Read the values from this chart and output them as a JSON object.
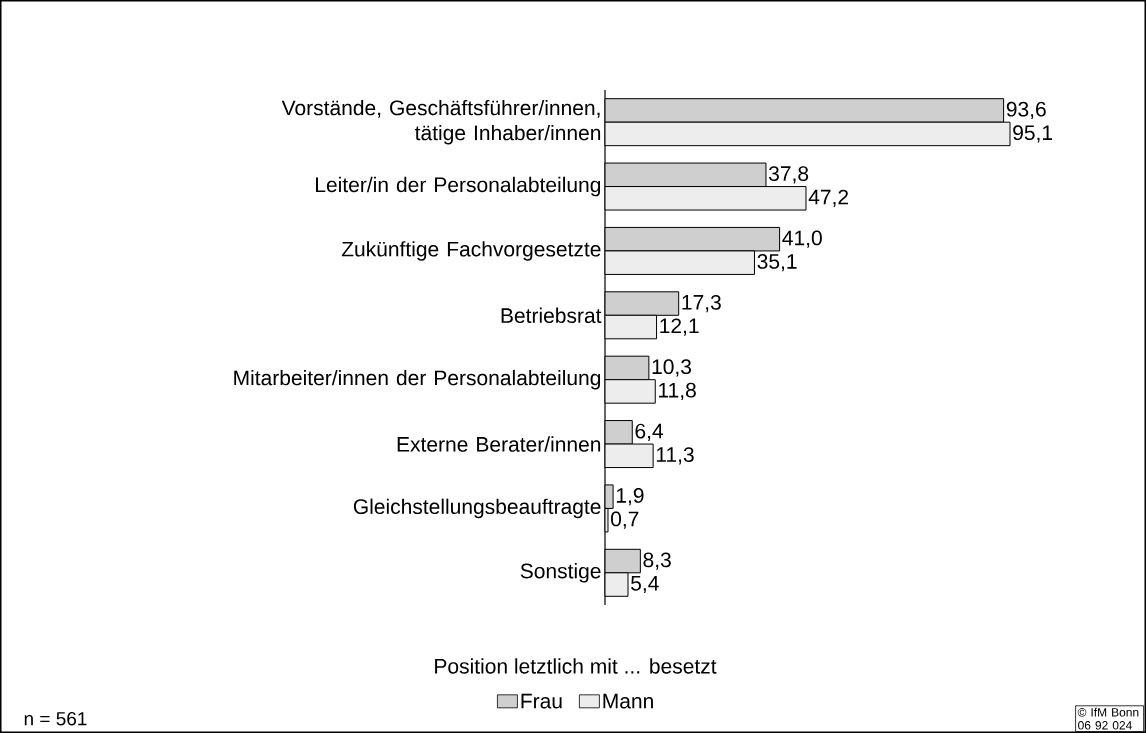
{
  "chart_data": {
    "type": "bar",
    "orientation": "horizontal",
    "legend": "bottom",
    "legend_title": "Position letztlich mit ... besetzt",
    "categories": [
      "Vorstände, Geschäftsführer/innen, tätige Inhaber/innen",
      "Leiter/in der Personalabteilung",
      "Zukünftige Fachvorgesetzte",
      "Betriebsrat",
      "Mitarbeiter/innen der Personalabteilung",
      "Externe Berater/innen",
      "Gleichstellungsbeauftragte",
      "Sonstige"
    ],
    "series": [
      {
        "name": "Frau",
        "color": "#cfcfcf",
        "values": [
          93.6,
          37.8,
          41.0,
          17.3,
          10.3,
          6.4,
          1.9,
          8.3
        ],
        "value_labels": [
          "93,6",
          "37,8",
          "41,0",
          "17,3",
          "10,3",
          "6,4",
          "1,9",
          "8,3"
        ]
      },
      {
        "name": "Mann",
        "color": "#ededed",
        "values": [
          95.1,
          47.2,
          35.1,
          12.1,
          11.8,
          11.3,
          0.7,
          5.4
        ],
        "value_labels": [
          "95,1",
          "47,2",
          "35,1",
          "12,1",
          "11,8",
          "11,3",
          "0,7",
          "5,4"
        ]
      }
    ],
    "annotations": [
      "n = 561",
      "© IfM Bonn 06 92 024"
    ]
  }
}
